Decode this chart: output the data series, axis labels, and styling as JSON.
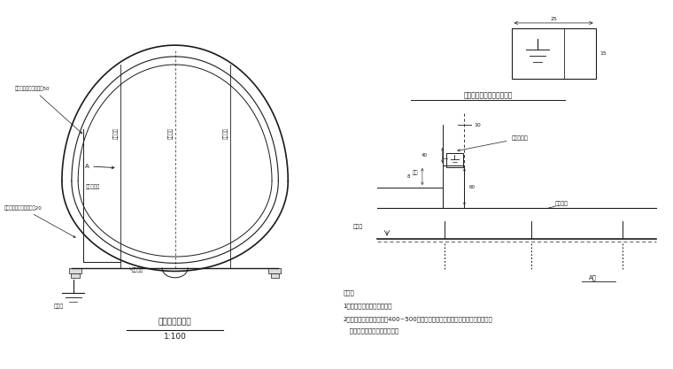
{
  "bg_color": "#ffffff",
  "line_color": "#1a1a1a",
  "title1": "隧道接地示意图",
  "scale1": "1:100",
  "title2": "引下线与接地极标志放大图",
  "notes_title": "附注：",
  "note1": "1、本图尺寸均以厘米米计。",
  "note2": "2、接地极宜每间隔不大于400~500米设一处，双线隧道为上下行共用，单、双线",
  "note3": "   隧道接地极均设于线路一侧。",
  "label_a": "A剖",
  "label_top_arrow": "接地引下线露出隧道管50",
  "label_side_arrow": "侧面引下线露出墙体遮壁20",
  "label_yindixia": "接地引下线",
  "label_diji_bot": "接地极",
  "label_neigu": "内轨顶面",
  "label_xianlu1": "线路中线",
  "label_suidao": "隧道中线",
  "label_xianlu2": "线路中线",
  "label_jiedibiaozhi": "接地极标志",
  "label_hanjie": "焊接",
  "label_diji2": "接地极",
  "dim_25": "25",
  "dim_15": "15",
  "dim_10": "10",
  "dim_60": "60",
  "dim_40": "40",
  "dim_8": "8"
}
